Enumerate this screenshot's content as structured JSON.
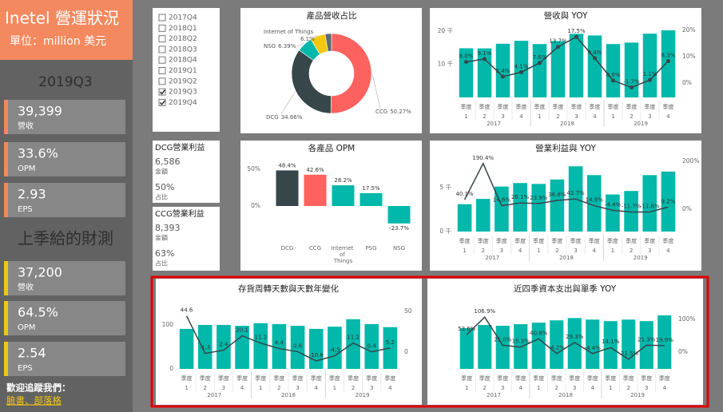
{
  "sidebar": {
    "title": "Inetel 營運狀況",
    "unit": "單位：million 美元",
    "period": "2019Q3",
    "actual": [
      {
        "value": "39,399",
        "label": "營收"
      },
      {
        "value": "33.6%",
        "label": "OPM"
      },
      {
        "value": "2.93",
        "label": "EPS"
      }
    ],
    "guidance_title": "上季給的財測",
    "guidance": [
      {
        "value": "37,200",
        "label": "營收"
      },
      {
        "value": "64.5%",
        "label": "OPM"
      },
      {
        "value": "2.54",
        "label": "EPS"
      }
    ],
    "follow": "歡迎追蹤我們：",
    "links": "臉書、部落格"
  },
  "filter": {
    "items": [
      {
        "label": "2017Q4",
        "checked": false
      },
      {
        "label": "2018Q1",
        "checked": false
      },
      {
        "label": "2018Q2",
        "checked": false
      },
      {
        "label": "2018Q3",
        "checked": false
      },
      {
        "label": "2018Q4",
        "checked": false
      },
      {
        "label": "2019Q1",
        "checked": false
      },
      {
        "label": "2019Q2",
        "checked": false
      },
      {
        "label": "2019Q3",
        "checked": true
      },
      {
        "label": "2019Q4",
        "checked": true
      }
    ]
  },
  "profit_cards": [
    {
      "title": "DCG營業利益",
      "amount": "6,586",
      "amount_label": "金額",
      "share": "50%",
      "share_label": "占比"
    },
    {
      "title": "CCG營業利益",
      "amount": "8,393",
      "amount_label": "金額",
      "share": "63%",
      "share_label": "占比"
    }
  ],
  "chart_data": [
    {
      "type": "pie",
      "title": "產品營收占比",
      "categories": [
        "CCG",
        "DCG",
        "NSG",
        "Internet of Things",
        null
      ],
      "values": [
        50.27,
        34.66,
        6.39,
        6.1,
        2.58
      ],
      "value_labels": [
        "50.27%",
        "34.66%",
        "6.39%",
        "6.1%",
        null
      ],
      "colors": [
        "#fd625e",
        "#374649",
        "#01b8aa",
        "#f2c80f",
        "#5f6b6d"
      ]
    },
    {
      "type": "combo",
      "title": "營收與 YOY",
      "x_label": "季度",
      "categories": [
        "1",
        "2",
        "3",
        "4",
        "1",
        "2",
        "3",
        "4",
        "1",
        "2",
        "3",
        "4"
      ],
      "groups": [
        "2017",
        "2018",
        "2019"
      ],
      "ylim": [
        0,
        21400
      ],
      "yticks": [
        {
          "value": 10000,
          "label": "10 千"
        },
        {
          "value": 20000,
          "label": "20 千"
        }
      ],
      "y2lim": [
        -5.5,
        21.5
      ],
      "y2ticks": [
        {
          "value": 0,
          "label": "0%"
        },
        {
          "value": 10,
          "label": "10%"
        },
        {
          "value": 20,
          "label": "20%"
        }
      ],
      "series": [
        {
          "kind": "bar",
          "color": "#01b8aa",
          "values": [
            14796,
            14763,
            16149,
            17053,
            16066,
            16962,
            19163,
            18657,
            16061,
            16505,
            19190,
            20209
          ]
        },
        {
          "kind": "line",
          "axis": "y2",
          "color": "#374649",
          "markers": true,
          "values": [
            8.0,
            9.1,
            2.4,
            4.1,
            7.6,
            13.7,
            17.5,
            9.4,
            0.9,
            -1.7,
            1.1,
            8.3
          ],
          "value_labels": [
            "8.0%",
            "9.1%",
            "2.4%",
            "4.1%",
            "7.6%",
            "13.7%",
            "17.5%",
            "9.4%",
            "0.9%",
            "-1.7%",
            "1.1%",
            "8.3%"
          ]
        }
      ]
    },
    {
      "type": "bar",
      "title": "各產品 OPM",
      "categories": [
        "DCG",
        "CCG",
        "Internet of Things",
        "PSG",
        "NSG"
      ],
      "values": [
        48.4,
        42.6,
        28.2,
        17.5,
        -23.7
      ],
      "value_labels": [
        "48.4%",
        "42.6%",
        "28.2%",
        "17.5%",
        "-23.7%"
      ],
      "colors": [
        "#374649",
        "#fd625e",
        "#01b8aa",
        "#01b8aa",
        "#01b8aa"
      ],
      "ylim": [
        -29.3,
        63
      ],
      "yticks": [
        {
          "value": 0,
          "label": "0%"
        },
        {
          "value": 50,
          "label": "50%"
        }
      ]
    },
    {
      "type": "combo",
      "title": "營業利益與 YOY",
      "x_label": "季度",
      "categories": [
        "1",
        "2",
        "3",
        "4",
        "1",
        "2",
        "3",
        "4",
        "1",
        "2",
        "3",
        "4"
      ],
      "groups": [
        "2017",
        "2018",
        "2019"
      ],
      "ylim": [
        0,
        8600
      ],
      "yticks": [
        {
          "value": 0,
          "label": "0 千"
        },
        {
          "value": 5000,
          "label": "5 千"
        }
      ],
      "y2lim": [
        -93,
        223
      ],
      "y2ticks": [
        {
          "value": 0,
          "label": "0%"
        },
        {
          "value": 200,
          "label": "200%"
        }
      ],
      "series": [
        {
          "kind": "bar",
          "color": "#01b8aa",
          "values": [
            3100,
            3700,
            5100,
            5500,
            5400,
            5900,
            7400,
            6400,
            4200,
            4600,
            6400,
            6800
          ]
        },
        {
          "kind": "line",
          "axis": "y2",
          "color": "#374649",
          "values": [
            40.1,
            190.4,
            14.6,
            26.1,
            23.9,
            36.6,
            42.7,
            14.9,
            -4.4,
            -11.7,
            -11.6,
            9.2
          ],
          "value_labels": [
            "40.1%",
            "190.4%",
            "14.6%",
            "26.1%",
            "23.9%",
            "36.6%",
            "42.7%",
            "14.9%",
            "-4.4%",
            "-11.7%",
            "-11.6%",
            "9.2%"
          ]
        }
      ]
    },
    {
      "type": "combo",
      "title": "存貨周轉天數與天數年變化",
      "x_label": "季度",
      "categories": [
        "1",
        "2",
        "3",
        "4",
        "1",
        "2",
        "3",
        "4",
        "1",
        "2",
        "3",
        "4"
      ],
      "groups": [
        "2017",
        "2018",
        "2019"
      ],
      "ylim": [
        0,
        149
      ],
      "yticks": [
        0,
        100
      ],
      "y2lim": [
        -20.6,
        60
      ],
      "y2ticks": [
        0,
        50
      ],
      "series": [
        {
          "kind": "bar",
          "color": "#01b8aa",
          "values": [
            91,
            100,
            100,
            98,
            104,
            102,
            98,
            91,
            96,
            113,
            102,
            95
          ]
        },
        {
          "kind": "line",
          "axis": "y2",
          "color": "#374649",
          "values": [
            44.6,
            -1.5,
            2.4,
            20.1,
            11.2,
            4.4,
            0.6,
            -10.8,
            -4.5,
            11.2,
            0.4,
            5.2
          ]
        }
      ]
    },
    {
      "type": "combo",
      "title": "近四季資本支出與單季 YOY",
      "x_label": "季度",
      "categories": [
        "1",
        "2",
        "3",
        "4",
        "1",
        "2",
        "3",
        "4",
        "1",
        "2",
        "3",
        "4"
      ],
      "groups": [
        "2017",
        "2018",
        "2019"
      ],
      "ylim": [
        0,
        17000
      ],
      "y2lim": [
        -51.2,
        148.8
      ],
      "y2ticks": [
        {
          "value": 0,
          "label": "0%"
        },
        {
          "value": 100,
          "label": "100%"
        }
      ],
      "series": [
        {
          "kind": "bar",
          "color": "#01b8aa",
          "values": [
            10600,
            11400,
            11200,
            11600,
            12000,
            12600,
            13200,
            12800,
            12400,
            12800,
            12400,
            13900
          ]
        },
        {
          "kind": "line",
          "axis": "y2",
          "color": "#374649",
          "values": [
            53.6,
            106.9,
            21.0,
            15.3,
            40.8,
            -4.2,
            29.3,
            -4.4,
            14.1,
            -21.5,
            21.3,
            19.9
          ],
          "value_labels": [
            "53.6%",
            "106.9%",
            "21.0%",
            "15.3%",
            "40.8%",
            "-4.2%",
            "29.3%",
            "-4.4%",
            "14.1%",
            "-21.5%",
            "21.3%",
            "19.9%"
          ]
        }
      ]
    }
  ]
}
